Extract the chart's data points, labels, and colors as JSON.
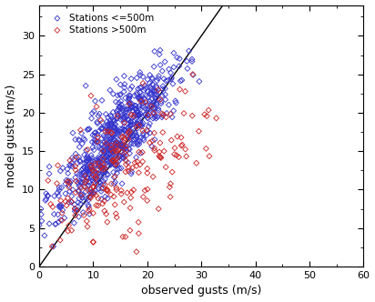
{
  "xlabel": "observed gusts (m/s)",
  "ylabel": "model gusts (m/s)",
  "xlim": [
    0,
    60
  ],
  "ylim": [
    0,
    34
  ],
  "xticks": [
    0,
    10,
    20,
    30,
    40,
    50,
    60
  ],
  "yticks": [
    0,
    5,
    10,
    15,
    20,
    25,
    30
  ],
  "legend_labels": [
    "Stations <=500m",
    "Stations >500m"
  ],
  "blue_color": "#3333cc",
  "red_color": "#cc2222",
  "marker": "D",
  "markersize": 3.0,
  "linewidth": 0.6,
  "seed": 77,
  "blue_n": 700,
  "red_n": 230,
  "blue_obs_mean": 14.0,
  "blue_obs_std": 5.5,
  "blue_mod_mean": 16.5,
  "blue_mod_std": 4.8,
  "blue_corr": 0.82,
  "red_obs_mean": 15.5,
  "red_obs_std": 8.0,
  "red_mod_mean": 13.0,
  "red_mod_std": 5.5,
  "red_corr": 0.6,
  "diag_color": "black",
  "diag_lw": 1.0,
  "xlabel_fontsize": 9,
  "ylabel_fontsize": 9,
  "tick_labelsize": 8,
  "legend_fontsize": 7.5,
  "figwidth": 4.12,
  "figheight": 3.32,
  "dpi": 100
}
